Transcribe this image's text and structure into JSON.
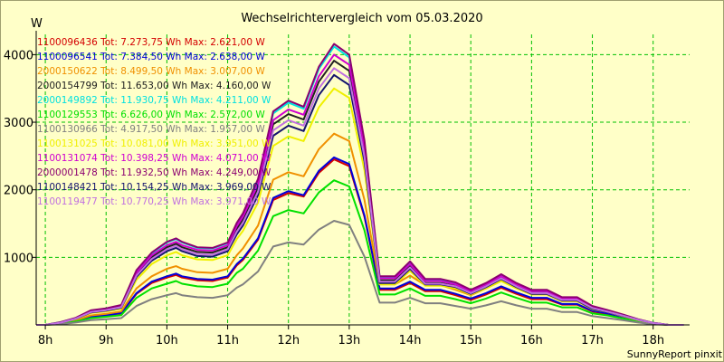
{
  "chart_data": {
    "type": "line",
    "title": "Wechselrichtervergleich vom 05.03.2020",
    "ylabel": "W",
    "xlabel": "",
    "footer": "SunnyReport pinxit",
    "grid": true,
    "ylim": [
      0,
      4300
    ],
    "xlim": [
      7.85,
      18.6
    ],
    "yticks": [
      1000,
      2000,
      3000,
      4000
    ],
    "ytick_labels": [
      "1000",
      "2000",
      "3000",
      "4000"
    ],
    "xticks": [
      8,
      9,
      10,
      11,
      12,
      13,
      14,
      15,
      16,
      17,
      18
    ],
    "xtick_labels": [
      "8h",
      "9h",
      "10h",
      "11h",
      "12h",
      "13h",
      "14h",
      "15h",
      "16h",
      "17h",
      "18h"
    ],
    "x": [
      7.85,
      8.0,
      8.25,
      8.5,
      8.75,
      9.0,
      9.25,
      9.5,
      9.75,
      10.0,
      10.15,
      10.25,
      10.5,
      10.75,
      11.0,
      11.15,
      11.25,
      11.5,
      11.75,
      12.0,
      12.25,
      12.5,
      12.75,
      13.0,
      13.25,
      13.5,
      13.75,
      14.0,
      14.25,
      14.5,
      14.75,
      15.0,
      15.25,
      15.5,
      15.75,
      16.0,
      16.25,
      16.5,
      16.75,
      17.0,
      17.25,
      17.5,
      17.75,
      18.0,
      18.25,
      18.5
    ],
    "series": [
      {
        "name": "1100096436",
        "legend": "1100096436 Tot: 7.273,75 Wh Max: 2.621,00 W",
        "color": "#d40000",
        "values": [
          0,
          0,
          20,
          60,
          120,
          140,
          170,
          460,
          620,
          700,
          740,
          700,
          660,
          650,
          700,
          880,
          960,
          1260,
          1850,
          1950,
          1900,
          2250,
          2450,
          2350,
          1600,
          520,
          520,
          620,
          500,
          500,
          440,
          370,
          450,
          550,
          460,
          380,
          380,
          300,
          300,
          200,
          160,
          110,
          60,
          20,
          0,
          0
        ]
      },
      {
        "name": "1100096541",
        "legend": "1100096541 Tot: 7.384,50 Wh Max: 2.638,00 W",
        "color": "#0000dc",
        "values": [
          0,
          0,
          20,
          60,
          125,
          145,
          175,
          470,
          640,
          720,
          760,
          720,
          680,
          670,
          720,
          900,
          980,
          1280,
          1880,
          1980,
          1920,
          2280,
          2480,
          2380,
          1620,
          540,
          540,
          640,
          520,
          520,
          460,
          390,
          470,
          570,
          480,
          400,
          400,
          310,
          310,
          210,
          170,
          120,
          60,
          20,
          0,
          0
        ]
      },
      {
        "name": "2000150622",
        "legend": "2000150622 Tot: 8.499,50 Wh Max: 3.007,00 W",
        "color": "#f09000",
        "values": [
          0,
          0,
          25,
          70,
          140,
          165,
          200,
          540,
          720,
          830,
          870,
          830,
          780,
          770,
          830,
          1030,
          1130,
          1470,
          2150,
          2260,
          2200,
          2600,
          2830,
          2720,
          1850,
          600,
          600,
          730,
          590,
          590,
          520,
          440,
          540,
          650,
          550,
          450,
          450,
          350,
          350,
          240,
          190,
          130,
          70,
          25,
          0,
          0
        ]
      },
      {
        "name": "2000154799",
        "legend": "2000154799 Tot: 11.653,00 Wh Max: 4.160,00 W",
        "color": "#202020",
        "values": [
          0,
          0,
          35,
          95,
          195,
          225,
          270,
          750,
          1000,
          1150,
          1200,
          1150,
          1080,
          1070,
          1150,
          1420,
          1560,
          2030,
          2970,
          3120,
          3040,
          3600,
          3910,
          3760,
          2560,
          660,
          660,
          870,
          620,
          620,
          580,
          480,
          580,
          700,
          580,
          480,
          480,
          380,
          380,
          250,
          200,
          140,
          80,
          30,
          0,
          0
        ]
      },
      {
        "name": "2000149892",
        "legend": "2000149892 Tot: 11.930,75 Wh Max: 4.211,00 W",
        "color": "#00e0e0",
        "values": [
          0,
          0,
          40,
          100,
          210,
          240,
          290,
          800,
          1060,
          1220,
          1270,
          1220,
          1140,
          1130,
          1210,
          1500,
          1640,
          2140,
          3130,
          3290,
          3200,
          3790,
          4120,
          3960,
          2700,
          710,
          710,
          930,
          670,
          670,
          620,
          510,
          610,
          740,
          610,
          510,
          510,
          400,
          400,
          270,
          210,
          150,
          80,
          30,
          0,
          0
        ]
      },
      {
        "name": "1100129553",
        "legend": "1100129553 Tot: 6.626,00 Wh Max: 2.572,00 W",
        "color": "#00e000",
        "values": [
          0,
          0,
          15,
          50,
          100,
          120,
          145,
          400,
          540,
          610,
          650,
          610,
          570,
          560,
          610,
          770,
          830,
          1100,
          1610,
          1700,
          1650,
          1960,
          2140,
          2050,
          1400,
          450,
          450,
          540,
          430,
          430,
          380,
          320,
          390,
          480,
          400,
          330,
          330,
          260,
          260,
          170,
          140,
          95,
          50,
          15,
          0,
          0
        ]
      },
      {
        "name": "1100130966",
        "legend": "1100130966 Tot: 4.917,50 Wh Max: 1.957,00 W",
        "color": "#808080",
        "values": [
          0,
          0,
          10,
          35,
          70,
          85,
          100,
          280,
          380,
          440,
          470,
          440,
          410,
          400,
          440,
          550,
          600,
          790,
          1160,
          1220,
          1190,
          1410,
          1540,
          1480,
          1010,
          330,
          330,
          400,
          320,
          320,
          280,
          240,
          290,
          350,
          290,
          240,
          240,
          190,
          190,
          130,
          100,
          70,
          35,
          10,
          0,
          0
        ]
      },
      {
        "name": "1100131025",
        "legend": "1100131025 Tot: 10.081,00 Wh Max: 3.951,00 W",
        "color": "#f0f000",
        "values": [
          0,
          0,
          30,
          85,
          175,
          200,
          240,
          670,
          900,
          1030,
          1080,
          1030,
          970,
          960,
          1030,
          1270,
          1390,
          1810,
          2650,
          2790,
          2720,
          3220,
          3500,
          3360,
          2290,
          600,
          600,
          800,
          580,
          580,
          540,
          450,
          540,
          650,
          540,
          450,
          450,
          350,
          350,
          230,
          190,
          130,
          70,
          25,
          0,
          0
        ]
      },
      {
        "name": "1100131074",
        "legend": "1100131074 Tot: 10.398,25 Wh Max: 4.071,00 W",
        "color": "#d000d0",
        "values": [
          0,
          0,
          35,
          95,
          200,
          230,
          280,
          770,
          1030,
          1180,
          1230,
          1180,
          1110,
          1100,
          1180,
          1460,
          1600,
          2080,
          3030,
          3190,
          3110,
          3680,
          4000,
          3850,
          2620,
          690,
          690,
          900,
          650,
          650,
          600,
          500,
          600,
          720,
          600,
          500,
          500,
          390,
          390,
          260,
          200,
          145,
          80,
          30,
          0,
          0
        ]
      },
      {
        "name": "2000001478",
        "legend": "2000001478 Tot: 11.932,50 Wh Max: 4.249,00 W",
        "color": "#8c0070",
        "values": [
          0,
          0,
          40,
          105,
          215,
          245,
          295,
          810,
          1070,
          1230,
          1280,
          1230,
          1150,
          1140,
          1220,
          1510,
          1650,
          2160,
          3160,
          3320,
          3230,
          3820,
          4160,
          4000,
          2730,
          720,
          720,
          940,
          680,
          680,
          630,
          520,
          620,
          750,
          620,
          520,
          520,
          410,
          410,
          280,
          220,
          155,
          85,
          30,
          0,
          0
        ]
      },
      {
        "name": "1100148421",
        "legend": "1100148421 Tot: 10.154,25 Wh Max: 3.969,00 W",
        "color": "#14146e",
        "values": [
          0,
          0,
          30,
          90,
          185,
          210,
          255,
          710,
          950,
          1090,
          1140,
          1090,
          1020,
          1010,
          1090,
          1340,
          1470,
          1920,
          2800,
          2950,
          2870,
          3400,
          3700,
          3550,
          2420,
          620,
          620,
          830,
          600,
          600,
          560,
          460,
          560,
          680,
          560,
          460,
          460,
          360,
          360,
          240,
          190,
          135,
          75,
          25,
          0,
          0
        ]
      },
      {
        "name": "1100119477",
        "legend": "1100119477 Tot: 10.770,25 Wh Max: 3.971,00 W",
        "color": "#c070e0",
        "values": [
          0,
          0,
          32,
          92,
          190,
          218,
          262,
          730,
          975,
          1120,
          1170,
          1120,
          1050,
          1040,
          1120,
          1380,
          1510,
          1970,
          2880,
          3030,
          2950,
          3500,
          3800,
          3650,
          2490,
          640,
          640,
          850,
          610,
          610,
          570,
          470,
          570,
          690,
          570,
          470,
          470,
          370,
          370,
          250,
          195,
          138,
          76,
          27,
          0,
          0
        ]
      }
    ]
  }
}
